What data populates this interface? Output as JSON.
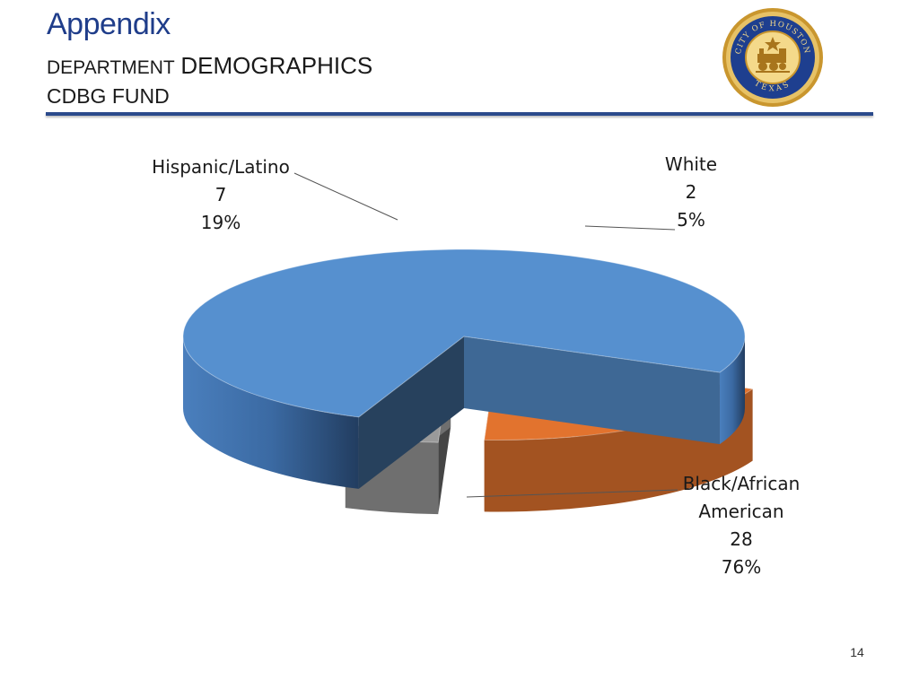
{
  "header": {
    "title": "Appendix",
    "subtitle_word1": "DEPARTMENT",
    "subtitle_word2": "DEMOGRAPHICS",
    "subtitle2": "CDBG FUND"
  },
  "seal": {
    "icon": "city-of-houston-seal-icon",
    "ring_text_top": "CITY OF HOUSTON",
    "ring_text_bottom": "TEXAS",
    "colors": {
      "ring": "#1e3f8f",
      "gold": "#d8a73a",
      "face": "#f4d98a"
    }
  },
  "chart_data": {
    "type": "pie",
    "title": "",
    "three_d": true,
    "slices": [
      {
        "label": "Black/African American",
        "label_lines": [
          "Black/African",
          "American"
        ],
        "value": 28,
        "percent": "76%",
        "color": "#5690cf",
        "exploded": false
      },
      {
        "label": "Hispanic/Latino",
        "label_lines": [
          "Hispanic/Latino"
        ],
        "value": 7,
        "percent": "19%",
        "color": "#e2732e",
        "exploded": true
      },
      {
        "label": "White",
        "label_lines": [
          "White"
        ],
        "value": 2,
        "percent": "5%",
        "color": "#9a9a9a",
        "exploded": true
      }
    ]
  },
  "footer": {
    "page_number": "14"
  }
}
